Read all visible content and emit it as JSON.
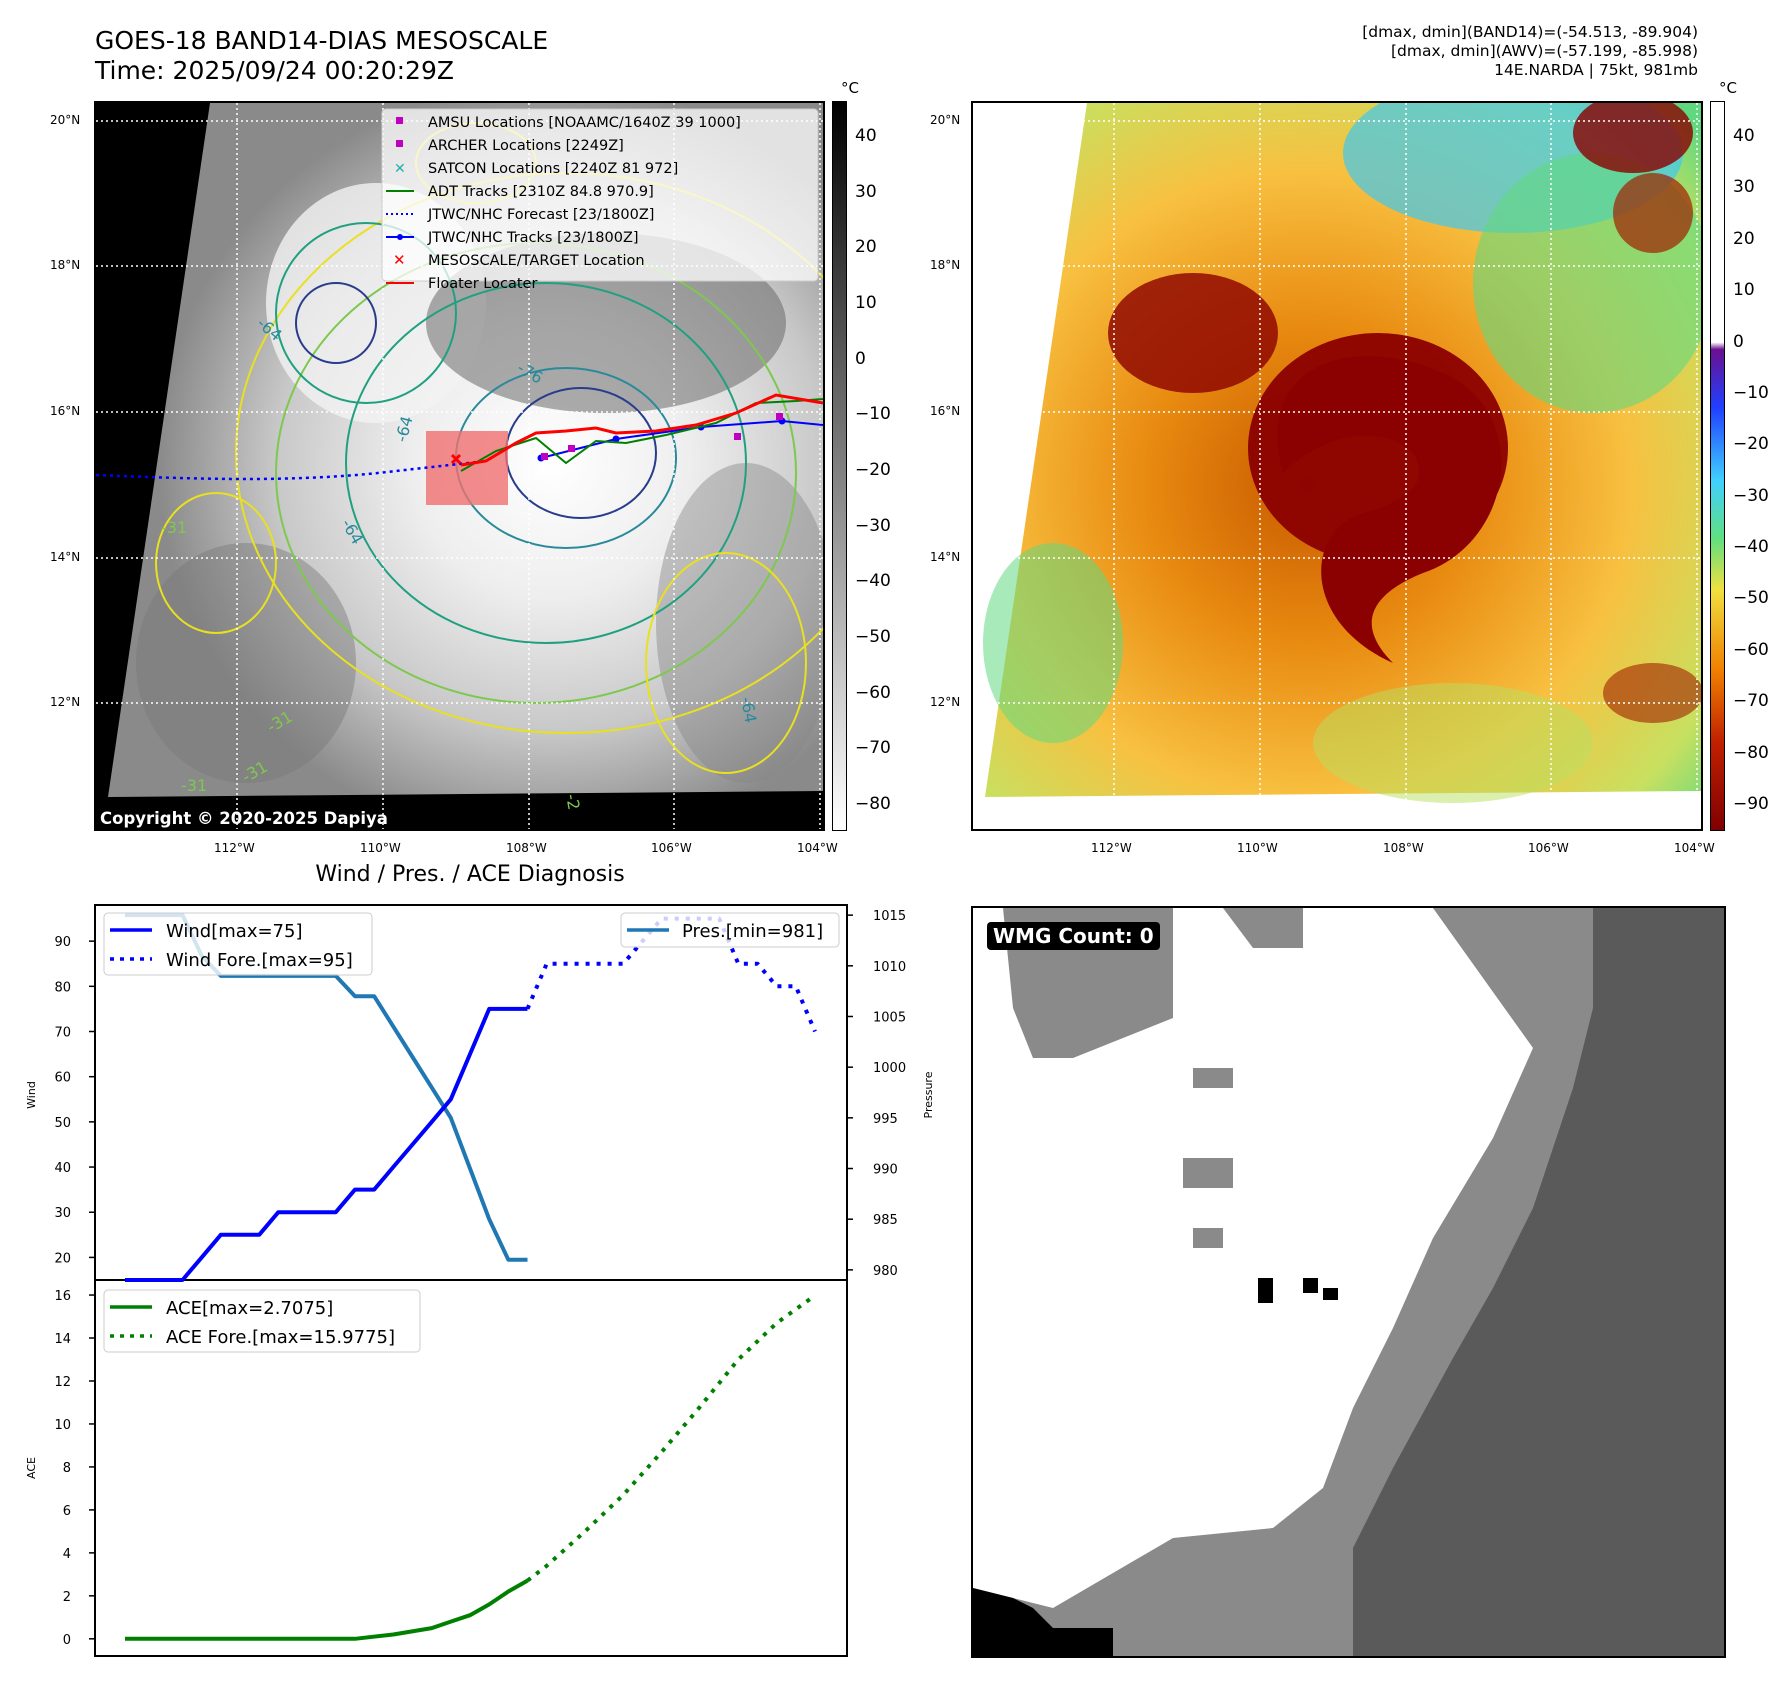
{
  "header": {
    "title_line1": "GOES-18 BAND14-DIAS MESOSCALE",
    "title_line2": "Time: 2025/09/24 00:20:29Z",
    "right_line1": "[dmax, dmin](BAND14)=(-54.513, -89.904)",
    "right_line2": "[dmax, dmin](AWV)=(-57.199, -85.998)",
    "right_line3": "14E.NARDA | 75kt, 981mb"
  },
  "map_left": {
    "legend": [
      {
        "label": "AMSU Locations [NOAAMC/1640Z 39 1000]",
        "symbol": "square",
        "color": "#c000c0"
      },
      {
        "label": "ARCHER Locations [2249Z]",
        "symbol": "square",
        "color": "#c000c0"
      },
      {
        "label": "SATCON Locations [2240Z 81 972]",
        "symbol": "x",
        "color": "#20b0b0"
      },
      {
        "label": "ADT Tracks [2310Z 84.8 970.9]",
        "symbol": "line",
        "color": "#008000"
      },
      {
        "label": "JTWC/NHC Forecast [23/1800Z]",
        "symbol": "dotted",
        "color": "#0000ff"
      },
      {
        "label": "JTWC/NHC Tracks [23/1800Z]",
        "symbol": "line-dot",
        "color": "#0000ff"
      },
      {
        "label": "MESOSCALE/TARGET Location",
        "symbol": "x",
        "color": "#ff0000"
      },
      {
        "label": "Floater Locater",
        "symbol": "line",
        "color": "#ff0000"
      }
    ],
    "copyright": "Copyright © 2020-2025 Dapiya",
    "contour_labels": [
      "-64",
      "-76",
      "-64",
      "-64",
      "-31",
      "-31",
      "-31",
      "-31",
      "-64",
      "-2"
    ]
  },
  "lat_labels": [
    "20°N",
    "18°N",
    "16°N",
    "14°N",
    "12°N"
  ],
  "lon_labels": [
    "112°W",
    "110°W",
    "108°W",
    "106°W",
    "104°W"
  ],
  "colorbar_left": {
    "unit": "°C",
    "ticks": [
      "40",
      "30",
      "20",
      "10",
      "0",
      "−10",
      "−20",
      "−30",
      "−40",
      "−50",
      "−60",
      "−70",
      "−80"
    ]
  },
  "colorbar_right": {
    "unit": "°C",
    "ticks": [
      "40",
      "30",
      "20",
      "10",
      "0",
      "−10",
      "−20",
      "−30",
      "−40",
      "−50",
      "−60",
      "−70",
      "−80",
      "−90"
    ]
  },
  "wmg": {
    "label": "WMG Count: 0"
  },
  "colors": {
    "wind": "#0000ff",
    "pressure": "#1f77b4",
    "ace": "#008000"
  },
  "chart_data": [
    {
      "type": "line",
      "title": "Wind / Pres. / ACE Diagnosis",
      "ylabel": "Wind",
      "y2label": "Pressure",
      "ylim": [
        15,
        98
      ],
      "y2lim": [
        979,
        1016
      ],
      "yticks": [
        20,
        30,
        40,
        50,
        60,
        70,
        80,
        90
      ],
      "y2ticks": [
        980,
        985,
        990,
        995,
        1000,
        1005,
        1010,
        1015
      ],
      "series": [
        {
          "name": "Wind[max=75]",
          "axis": "left",
          "style": "solid",
          "x": [
            0,
            1,
            2,
            3,
            4,
            5,
            6,
            7,
            8,
            9,
            10,
            11,
            12,
            13,
            14,
            15,
            16,
            17,
            18,
            19,
            20,
            21
          ],
          "values": [
            15,
            15,
            15,
            15,
            20,
            25,
            25,
            25,
            30,
            30,
            30,
            30,
            35,
            35,
            40,
            45,
            50,
            55,
            65,
            75,
            75,
            75
          ]
        },
        {
          "name": "Wind Fore.[max=95]",
          "axis": "left",
          "style": "dotted",
          "x": [
            21,
            22,
            23,
            24,
            25,
            26,
            27,
            28,
            29,
            30,
            31,
            32,
            33,
            34,
            35,
            36
          ],
          "values": [
            75,
            85,
            85,
            85,
            85,
            85,
            90,
            95,
            95,
            95,
            95,
            85,
            85,
            80,
            80,
            70
          ]
        },
        {
          "name": "Pres.[min=981]",
          "axis": "right",
          "style": "solid",
          "x": [
            0,
            1,
            2,
            3,
            4,
            5,
            6,
            7,
            8,
            9,
            10,
            11,
            12,
            13,
            14,
            15,
            16,
            17,
            18,
            19,
            20,
            21
          ],
          "values": [
            1015,
            1015,
            1015,
            1015,
            1011,
            1009,
            1009,
            1009,
            1009,
            1009,
            1009,
            1009,
            1007,
            1007,
            1004,
            1001,
            998,
            995,
            990,
            985,
            981,
            981
          ]
        }
      ]
    },
    {
      "type": "line",
      "ylabel": "ACE",
      "ylim": [
        -0.8,
        16.7
      ],
      "yticks": [
        0,
        2,
        4,
        6,
        8,
        10,
        12,
        14,
        16
      ],
      "series": [
        {
          "name": "ACE[max=2.7075]",
          "style": "solid",
          "x": [
            0,
            2,
            4,
            6,
            8,
            10,
            12,
            14,
            16,
            17,
            18,
            19,
            20,
            21
          ],
          "values": [
            0,
            0,
            0,
            0,
            0,
            0,
            0,
            0.2,
            0.5,
            0.8,
            1.1,
            1.6,
            2.2,
            2.7075
          ]
        },
        {
          "name": "ACE Fore.[max=15.9775]",
          "style": "dotted",
          "x": [
            21,
            22,
            24,
            26,
            28,
            30,
            32,
            34,
            36
          ],
          "values": [
            2.7075,
            3.4,
            5.0,
            6.7,
            8.7,
            10.8,
            13.0,
            14.7,
            15.9775
          ]
        }
      ]
    }
  ]
}
